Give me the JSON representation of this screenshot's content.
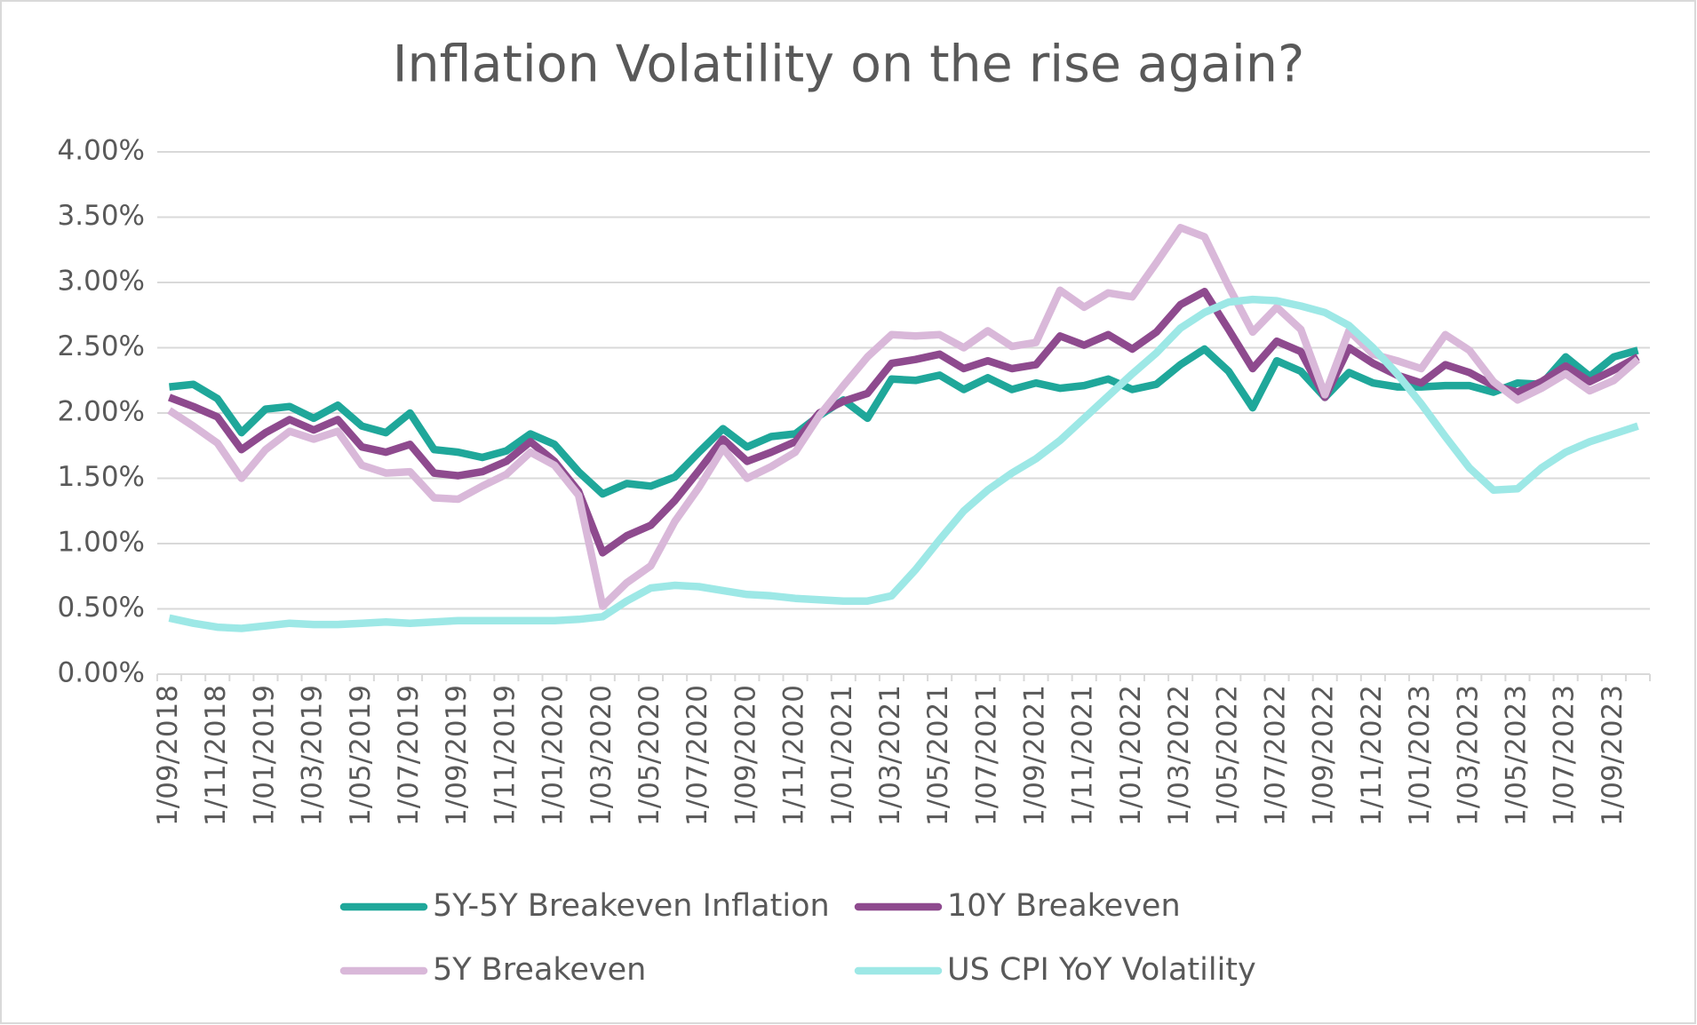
{
  "chart_data": {
    "type": "line",
    "title": "Inflation Volatility on the rise again?",
    "categories": [
      "1/09/2018",
      null,
      "1/11/2018",
      null,
      "1/01/2019",
      null,
      "1/03/2019",
      null,
      "1/05/2019",
      null,
      "1/07/2019",
      null,
      "1/09/2019",
      null,
      "1/11/2019",
      null,
      "1/01/2020",
      null,
      "1/03/2020",
      null,
      "1/05/2020",
      null,
      "1/07/2020",
      null,
      "1/09/2020",
      null,
      "1/11/2020",
      null,
      "1/01/2021",
      null,
      "1/03/2021",
      null,
      "1/05/2021",
      null,
      "1/07/2021",
      null,
      "1/09/2021",
      null,
      "1/11/2021",
      null,
      "1/01/2022",
      null,
      "1/03/2022",
      null,
      "1/05/2022",
      null,
      "1/07/2022",
      null,
      "1/09/2022",
      null,
      "1/11/2022",
      null,
      "1/01/2023",
      null,
      "1/03/2023",
      null,
      "1/05/2023",
      null,
      "1/07/2023",
      null,
      "1/09/2023",
      null
    ],
    "series": [
      {
        "name": "5Y-5Y Breakeven Inflation",
        "color": "#1fa79a",
        "values": [
          2.2,
          2.22,
          2.11,
          1.85,
          2.03,
          2.05,
          1.96,
          2.06,
          1.9,
          1.85,
          2.0,
          1.72,
          1.7,
          1.66,
          1.71,
          1.84,
          1.76,
          1.55,
          1.38,
          1.46,
          1.44,
          1.51,
          1.7,
          1.88,
          1.74,
          1.82,
          1.84,
          1.98,
          2.1,
          1.96,
          2.26,
          2.25,
          2.29,
          2.18,
          2.27,
          2.18,
          2.23,
          2.19,
          2.21,
          2.26,
          2.18,
          2.22,
          2.37,
          2.49,
          2.32,
          2.04,
          2.4,
          2.32,
          2.12,
          2.31,
          2.23,
          2.2,
          2.2,
          2.21,
          2.21,
          2.16,
          2.23,
          2.22,
          2.43,
          2.28,
          2.43,
          2.48
        ]
      },
      {
        "name": "10Y Breakeven",
        "color": "#8e4a8e",
        "values": [
          2.12,
          2.05,
          1.97,
          1.72,
          1.85,
          1.95,
          1.87,
          1.95,
          1.74,
          1.7,
          1.76,
          1.54,
          1.52,
          1.55,
          1.63,
          1.78,
          1.63,
          1.4,
          0.93,
          1.06,
          1.14,
          1.33,
          1.56,
          1.8,
          1.63,
          1.7,
          1.78,
          2.0,
          2.09,
          2.15,
          2.38,
          2.41,
          2.45,
          2.34,
          2.4,
          2.34,
          2.37,
          2.59,
          2.52,
          2.6,
          2.49,
          2.62,
          2.83,
          2.93,
          2.64,
          2.34,
          2.55,
          2.47,
          2.12,
          2.5,
          2.38,
          2.29,
          2.23,
          2.37,
          2.31,
          2.21,
          2.16,
          2.24,
          2.36,
          2.24,
          2.33,
          2.43
        ]
      },
      {
        "name": "5Y Breakeven",
        "color": "#d9b8d9",
        "values": [
          2.02,
          1.9,
          1.77,
          1.5,
          1.72,
          1.86,
          1.8,
          1.86,
          1.6,
          1.54,
          1.55,
          1.35,
          1.34,
          1.44,
          1.53,
          1.7,
          1.6,
          1.37,
          0.52,
          0.7,
          0.83,
          1.17,
          1.43,
          1.73,
          1.5,
          1.59,
          1.7,
          1.98,
          2.21,
          2.43,
          2.6,
          2.59,
          2.6,
          2.5,
          2.63,
          2.51,
          2.54,
          2.94,
          2.81,
          2.92,
          2.89,
          3.15,
          3.42,
          3.35,
          2.97,
          2.62,
          2.81,
          2.64,
          2.14,
          2.63,
          2.45,
          2.4,
          2.34,
          2.6,
          2.48,
          2.24,
          2.1,
          2.19,
          2.3,
          2.17,
          2.25,
          2.41
        ]
      },
      {
        "name": "US CPI YoY Volatility",
        "color": "#9de8e6",
        "values": [
          0.43,
          0.39,
          0.36,
          0.35,
          0.37,
          0.39,
          0.38,
          0.38,
          0.39,
          0.4,
          0.39,
          0.4,
          0.41,
          0.41,
          0.41,
          0.41,
          0.41,
          0.42,
          0.44,
          0.56,
          0.66,
          0.68,
          0.67,
          0.64,
          0.61,
          0.6,
          0.58,
          0.57,
          0.56,
          0.56,
          0.6,
          0.8,
          1.03,
          1.25,
          1.41,
          1.54,
          1.65,
          1.79,
          1.96,
          2.13,
          2.3,
          2.46,
          2.65,
          2.77,
          2.85,
          2.87,
          2.86,
          2.82,
          2.77,
          2.67,
          2.5,
          2.3,
          2.07,
          1.82,
          1.58,
          1.41,
          1.42,
          1.58,
          1.7,
          1.78,
          1.84,
          1.9
        ]
      }
    ],
    "ylim": [
      0,
      4
    ],
    "yticks": [
      {
        "value": 0,
        "label": "0.00%"
      },
      {
        "value": 0.5,
        "label": "0.50%"
      },
      {
        "value": 1,
        "label": "1.00%"
      },
      {
        "value": 1.5,
        "label": "1.50%"
      },
      {
        "value": 2,
        "label": "2.00%"
      },
      {
        "value": 2.5,
        "label": "2.50%"
      },
      {
        "value": 3,
        "label": "3.00%"
      },
      {
        "value": 3.5,
        "label": "3.50%"
      },
      {
        "value": 4,
        "label": "4.00%"
      }
    ],
    "grid": true,
    "legend": "bottom"
  }
}
